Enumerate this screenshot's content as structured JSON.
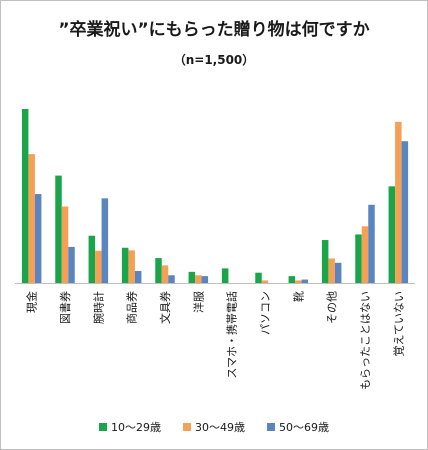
{
  "header": {
    "title": "”卒業祝い”にもらった贈り物は何ですか",
    "subtitle": "（n=1,500）"
  },
  "chart_data": {
    "type": "bar",
    "title": "”卒業祝い”にもらった贈り物は何ですか",
    "subtitle": "（n=1,500）",
    "categories": [
      "現金",
      "図書券",
      "腕時計",
      "商品券",
      "文具券",
      "洋服",
      "スマホ・携帯電話",
      "パソコン",
      "靴",
      "その他",
      "もらったことはない",
      "覚えていない"
    ],
    "series": [
      {
        "name": "10～29歳",
        "color": "#1aa54a",
        "values": [
          40.5,
          25.0,
          11.0,
          8.2,
          5.8,
          2.6,
          3.4,
          2.4,
          1.6,
          10.0,
          11.3,
          22.5
        ]
      },
      {
        "name": "30～49歳",
        "color": "#f5a055",
        "values": [
          30.0,
          17.8,
          7.5,
          7.6,
          4.1,
          1.8,
          0.0,
          0.6,
          0.6,
          5.7,
          13.2,
          37.5
        ]
      },
      {
        "name": "50～69歳",
        "color": "#5b85c0",
        "values": [
          20.7,
          8.4,
          19.7,
          2.8,
          1.8,
          1.6,
          0.0,
          0.0,
          0.8,
          4.7,
          18.2,
          33.0
        ]
      }
    ],
    "ylim": [
      0,
      40.5
    ],
    "grid": false,
    "legend_position": "bottom"
  }
}
